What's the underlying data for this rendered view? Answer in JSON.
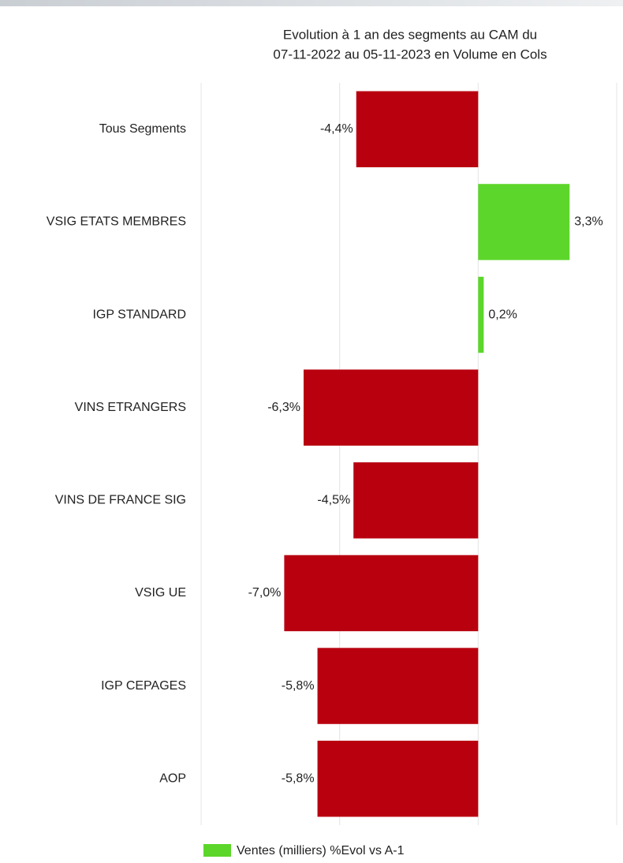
{
  "chart_data": {
    "type": "hbar",
    "title": [
      "Evolution à 1 an des segments au CAM du",
      "07-11-2022 au 05-11-2023 en Volume en Cols"
    ],
    "categories": [
      "Tous Segments",
      "VSIG ETATS MEMBRES",
      "IGP STANDARD",
      "VINS ETRANGERS",
      "VINS DE FRANCE SIG",
      "VSIG UE",
      "IGP CEPAGES",
      "AOP"
    ],
    "series": [
      {
        "name": "Ventes (milliers) %Evol vs A-1",
        "color": "#5cd62a",
        "negative_color": "#b8000f",
        "values": [
          -4.4,
          3.3,
          0.2,
          -6.3,
          -4.5,
          -7.0,
          -5.8,
          -5.8
        ],
        "value_labels": [
          "-4,4%",
          "3,3%",
          "0,2%",
          "-6,3%",
          "-4,5%",
          "-7,0%",
          "-5,8%",
          "-5,8%"
        ]
      }
    ],
    "xlim": [
      -10,
      5
    ],
    "xticks": [
      -10,
      -5,
      0,
      5
    ],
    "grid": true,
    "legend": "bottom"
  }
}
